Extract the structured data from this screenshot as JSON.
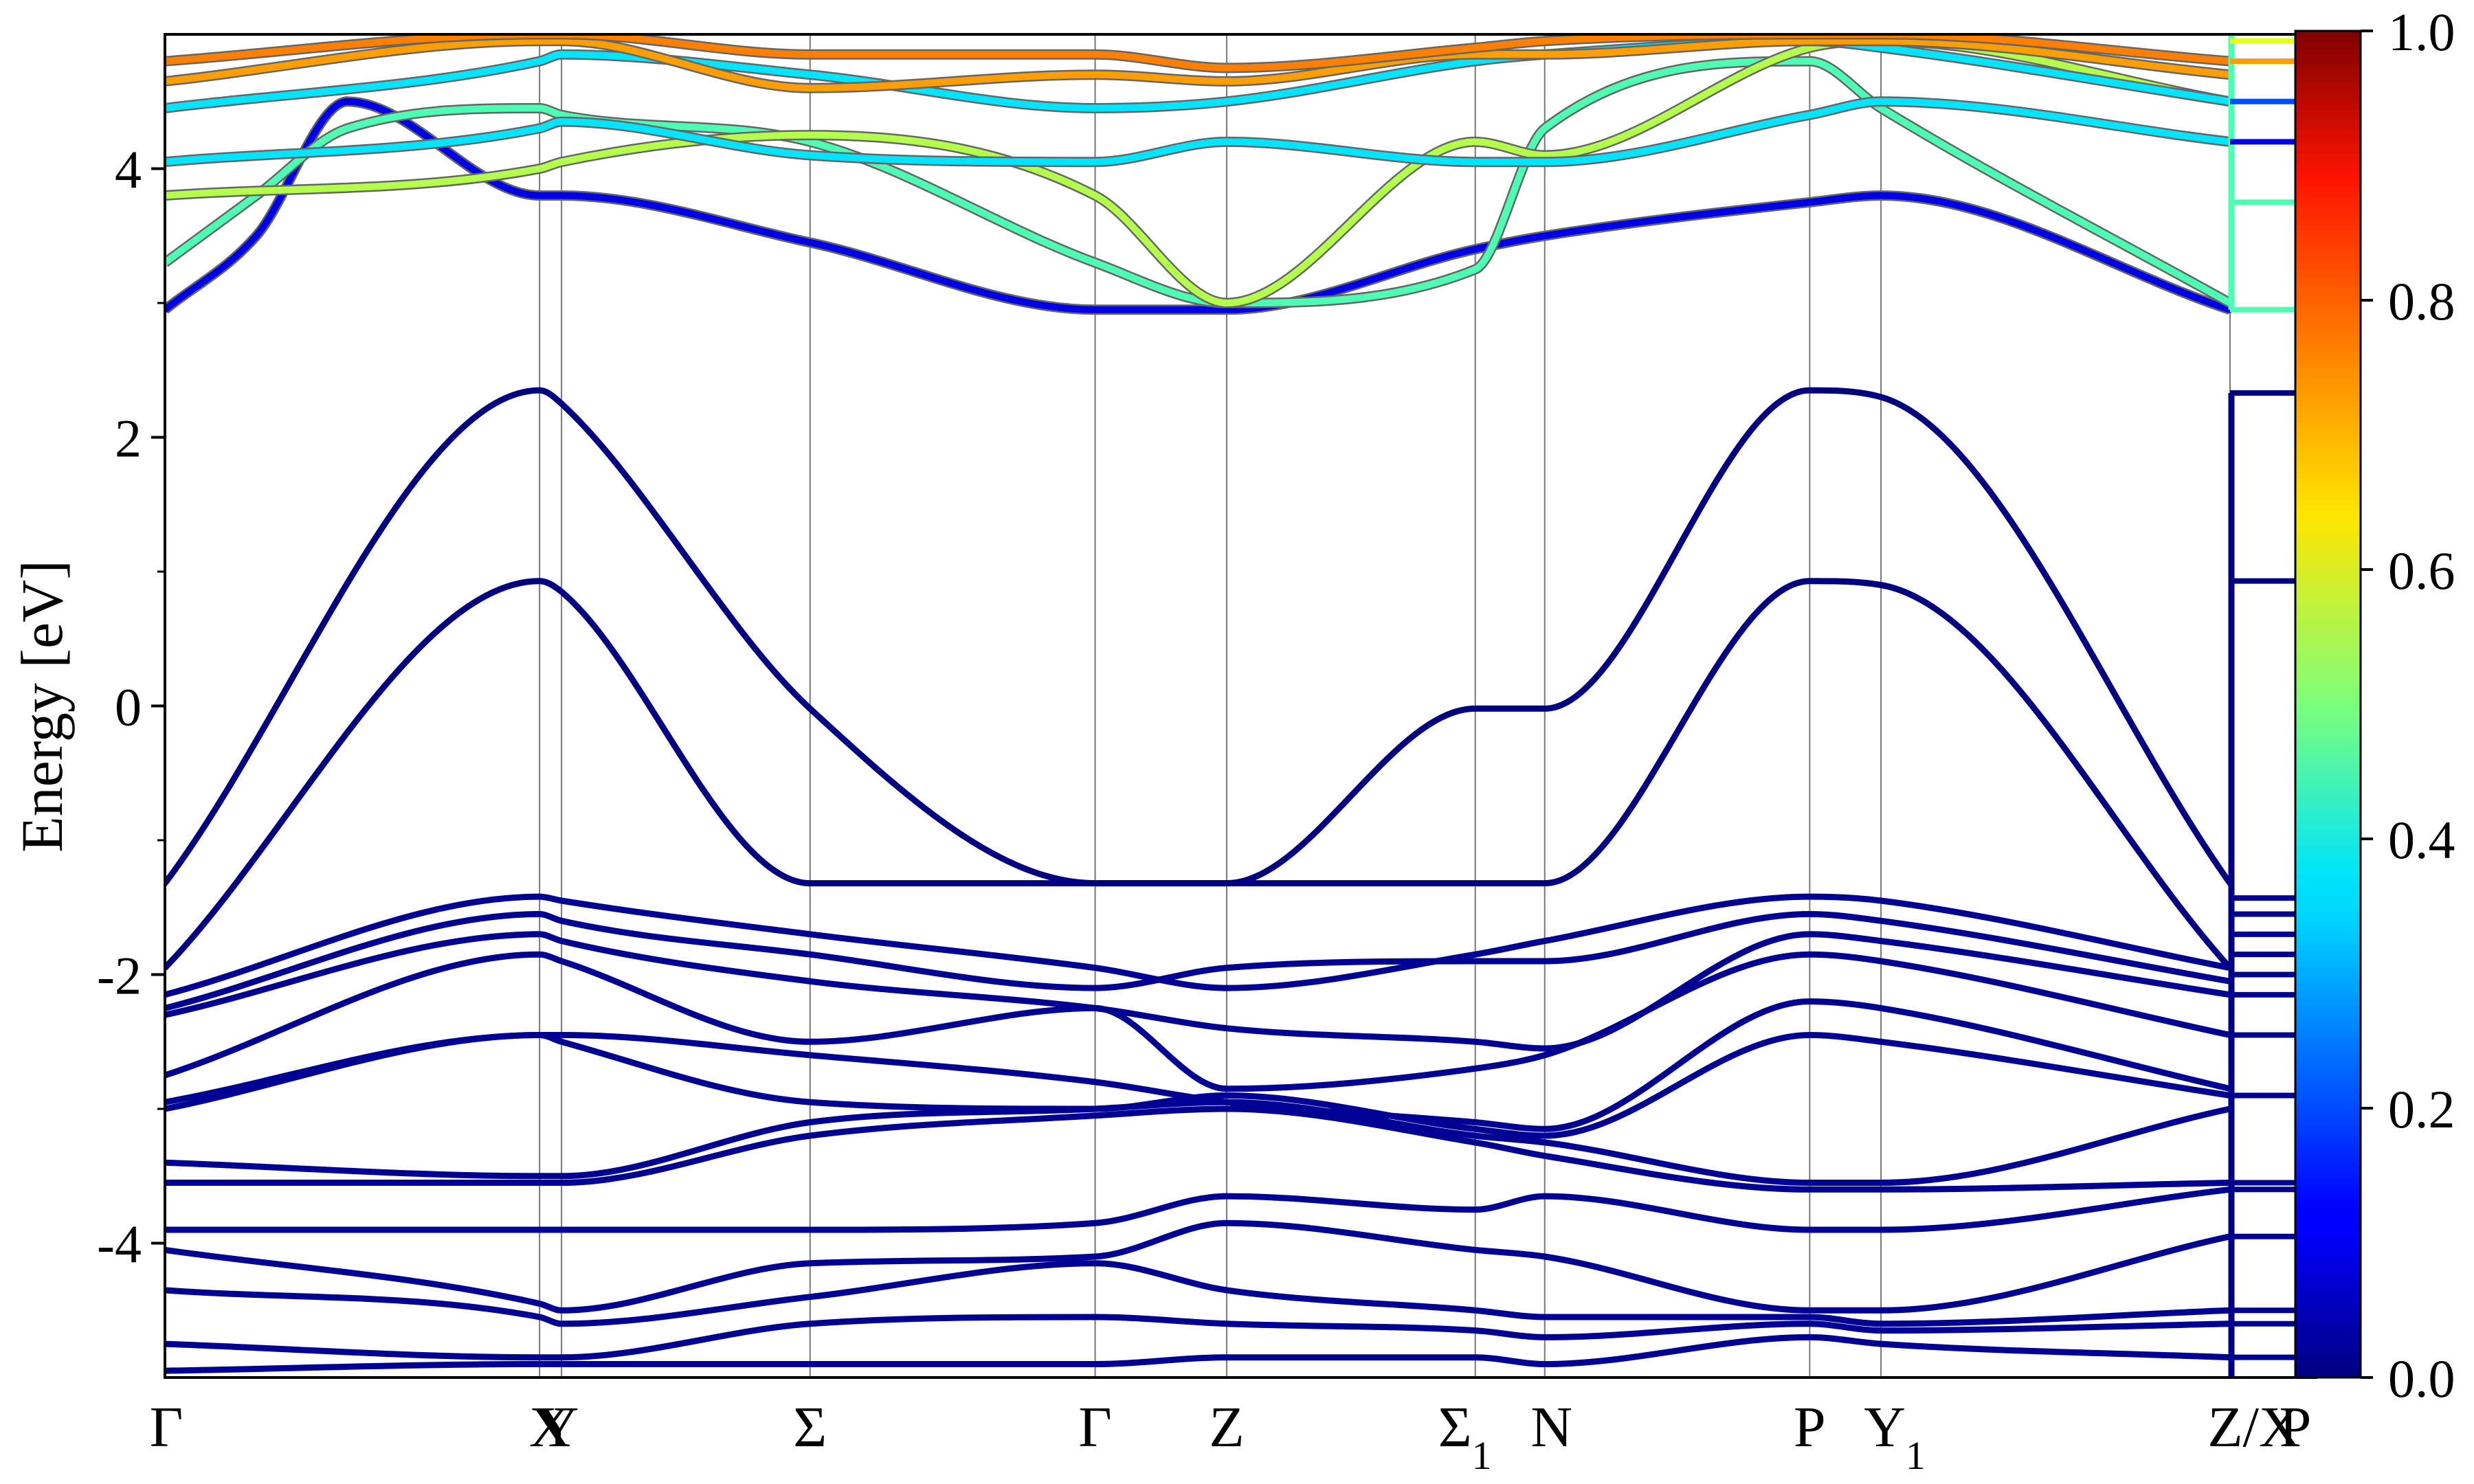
{
  "chart_data": {
    "type": "line",
    "title": "",
    "xlabel": "",
    "ylabel": "Energy [eV]",
    "ylim": [
      -5,
      5
    ],
    "y_ticks": [
      -4,
      -2,
      0,
      2,
      4
    ],
    "y_tick_labels": [
      "-4",
      "-2",
      "0",
      "2",
      "4"
    ],
    "grid": "vertical lines at high-symmetry points",
    "legend": "none",
    "high_symmetry_points": [
      {
        "label": "Γ",
        "sub": "",
        "k": 0.0
      },
      {
        "label": "X",
        "sub": "",
        "k": 2.05
      },
      {
        "label": "Y",
        "sub": "",
        "k": 2.17
      },
      {
        "label": "Σ",
        "sub": "",
        "k": 3.53
      },
      {
        "label": "Γ",
        "sub": "",
        "k": 5.09
      },
      {
        "label": "Z",
        "sub": "",
        "k": 5.81
      },
      {
        "label": "Σ",
        "sub": "1",
        "k": 7.17
      },
      {
        "label": "N",
        "sub": "",
        "k": 7.55
      },
      {
        "label": "P",
        "sub": "",
        "k": 9.0
      },
      {
        "label": "Y",
        "sub": "1",
        "k": 9.39
      },
      {
        "label": "Z/X",
        "sub": "",
        "k": 11.3
      },
      {
        "label": "P",
        "sub": "",
        "k": 11.55
      }
    ],
    "colorbar": {
      "colormap": "jet",
      "range": [
        0.0,
        1.0
      ],
      "tick_labels": [
        "0.0",
        "0.2",
        "0.4",
        "0.6",
        "0.8",
        "1.0"
      ]
    },
    "series": [
      {
        "role": "valence",
        "weight": 0.0,
        "k": [
          0,
          2.05,
          2.17,
          3.53,
          5.09,
          5.81,
          7.17,
          7.55,
          9.0,
          9.39,
          11.3
        ],
        "energy": [
          -1.32,
          2.35,
          2.25,
          -0.02,
          -1.32,
          -1.32,
          -0.02,
          -0.02,
          2.35,
          2.3,
          -1.32
        ]
      },
      {
        "role": "valence",
        "weight": 0.0,
        "k": [
          0,
          2.05,
          2.17,
          3.53,
          5.09,
          5.81,
          7.17,
          7.55,
          9.0,
          9.39,
          11.3
        ],
        "energy": [
          -1.95,
          0.93,
          0.85,
          -1.32,
          -1.32,
          -1.32,
          -1.32,
          -1.32,
          0.93,
          0.9,
          -1.95
        ]
      },
      {
        "role": "valence",
        "weight": 0.02,
        "k": [
          0,
          2.05,
          2.17,
          3.53,
          5.09,
          5.81,
          7.17,
          7.55,
          9.0,
          9.39,
          11.3
        ],
        "energy": [
          -2.15,
          -1.42,
          -1.45,
          -1.7,
          -1.95,
          -2.1,
          -1.85,
          -1.75,
          -1.42,
          -1.45,
          -1.95
        ]
      },
      {
        "role": "valence",
        "weight": 0.02,
        "k": [
          0,
          2.05,
          2.17,
          3.53,
          5.09,
          5.81,
          7.17,
          7.55,
          9.0,
          9.39,
          11.3
        ],
        "energy": [
          -2.25,
          -1.55,
          -1.6,
          -1.85,
          -2.1,
          -1.95,
          -1.9,
          -1.9,
          -1.55,
          -1.6,
          -2.05
        ]
      },
      {
        "role": "valence",
        "weight": 0.02,
        "k": [
          0,
          2.05,
          2.17,
          3.53,
          5.09,
          5.81,
          7.17,
          7.55,
          9.0,
          9.39,
          11.3
        ],
        "energy": [
          -2.3,
          -1.7,
          -1.75,
          -2.05,
          -2.25,
          -2.4,
          -2.5,
          -2.55,
          -1.7,
          -1.75,
          -2.15
        ]
      },
      {
        "role": "valence",
        "weight": 0.02,
        "k": [
          0,
          2.05,
          2.17,
          3.53,
          5.09,
          5.81,
          7.17,
          7.55,
          9.0,
          9.39,
          11.3
        ],
        "energy": [
          -2.75,
          -1.85,
          -1.9,
          -2.5,
          -2.25,
          -2.85,
          -2.7,
          -2.6,
          -1.85,
          -1.9,
          -2.45
        ]
      },
      {
        "role": "valence",
        "weight": 0.02,
        "k": [
          0,
          2.05,
          2.17,
          3.53,
          5.09,
          5.81,
          7.17,
          7.55,
          9.0,
          9.39,
          11.3
        ],
        "energy": [
          -2.95,
          -2.45,
          -2.45,
          -2.6,
          -2.8,
          -2.95,
          -3.1,
          -3.15,
          -2.2,
          -2.25,
          -2.85
        ]
      },
      {
        "role": "valence",
        "weight": 0.02,
        "k": [
          0,
          2.05,
          2.17,
          3.53,
          5.09,
          5.81,
          7.17,
          7.55,
          9.0,
          9.39,
          11.3
        ],
        "energy": [
          -3.0,
          -2.45,
          -2.5,
          -2.95,
          -3.0,
          -2.9,
          -3.15,
          -3.2,
          -2.45,
          -2.5,
          -2.9
        ]
      },
      {
        "role": "valence",
        "weight": 0.02,
        "k": [
          0,
          2.05,
          2.17,
          3.53,
          5.09,
          5.81,
          7.17,
          7.55,
          9.0,
          9.39,
          11.3
        ],
        "energy": [
          -3.4,
          -3.5,
          -3.5,
          -3.1,
          -3.0,
          -2.95,
          -3.2,
          -3.25,
          -3.55,
          -3.55,
          -3.0
        ]
      },
      {
        "role": "valence",
        "weight": 0.02,
        "k": [
          0,
          2.05,
          2.17,
          3.53,
          5.09,
          5.81,
          7.17,
          7.55,
          9.0,
          9.39,
          11.3
        ],
        "energy": [
          -3.55,
          -3.55,
          -3.55,
          -3.2,
          -3.05,
          -3.0,
          -3.25,
          -3.35,
          -3.6,
          -3.6,
          -3.55
        ]
      },
      {
        "role": "valence",
        "weight": 0.02,
        "k": [
          0,
          2.05,
          2.17,
          3.53,
          5.09,
          5.81,
          7.17,
          7.55,
          9.0,
          9.39,
          11.3
        ],
        "energy": [
          -3.9,
          -3.9,
          -3.9,
          -3.9,
          -3.85,
          -3.65,
          -3.75,
          -3.65,
          -3.9,
          -3.9,
          -3.6
        ]
      },
      {
        "role": "valence",
        "weight": 0.02,
        "k": [
          0,
          2.05,
          2.17,
          3.53,
          5.09,
          5.81,
          7.17,
          7.55,
          9.0,
          9.39,
          11.3
        ],
        "energy": [
          -4.05,
          -4.45,
          -4.5,
          -4.15,
          -4.1,
          -3.85,
          -4.05,
          -4.1,
          -4.5,
          -4.5,
          -3.95
        ]
      },
      {
        "role": "valence",
        "weight": 0.02,
        "k": [
          0,
          2.05,
          2.17,
          3.53,
          5.09,
          5.81,
          7.17,
          7.55,
          9.0,
          9.39,
          11.3
        ],
        "energy": [
          -4.35,
          -4.55,
          -4.6,
          -4.4,
          -4.15,
          -4.35,
          -4.5,
          -4.55,
          -4.55,
          -4.6,
          -4.5
        ]
      },
      {
        "role": "valence",
        "weight": 0.02,
        "k": [
          0,
          2.05,
          2.17,
          3.53,
          5.09,
          5.81,
          7.17,
          7.55,
          9.0,
          9.39,
          11.3
        ],
        "energy": [
          -4.75,
          -4.85,
          -4.85,
          -4.6,
          -4.55,
          -4.6,
          -4.65,
          -4.7,
          -4.6,
          -4.65,
          -4.6
        ]
      },
      {
        "role": "valence",
        "weight": 0.02,
        "k": [
          0,
          2.05,
          2.17,
          3.53,
          5.09,
          5.81,
          7.17,
          7.55,
          9.0,
          9.39,
          11.3
        ],
        "energy": [
          -4.95,
          -4.9,
          -4.9,
          -4.9,
          -4.9,
          -4.85,
          -4.85,
          -4.9,
          -4.7,
          -4.75,
          -4.85
        ]
      },
      {
        "role": "conduction",
        "weight": 0.1,
        "k": [
          0,
          0.5,
          1.0,
          2.05,
          2.17,
          3.53,
          5.09,
          5.81,
          7.17,
          7.55,
          9.0,
          9.39,
          11.3
        ],
        "energy": [
          2.95,
          3.5,
          4.5,
          3.8,
          3.8,
          3.45,
          2.95,
          2.95,
          3.4,
          3.5,
          3.75,
          3.8,
          2.95
        ]
      },
      {
        "role": "conduction",
        "weight": 0.45,
        "k": [
          0,
          0.5,
          1.0,
          2.05,
          2.17,
          3.53,
          5.09,
          5.81,
          7.17,
          7.55,
          9.0,
          9.39,
          11.3
        ],
        "energy": [
          3.3,
          3.8,
          4.3,
          4.45,
          4.4,
          4.2,
          3.3,
          3.0,
          3.25,
          4.3,
          4.8,
          4.45,
          3.0
        ]
      },
      {
        "role": "conduction",
        "weight": 0.55,
        "k": [
          0,
          2.05,
          2.17,
          3.53,
          5.09,
          5.81,
          7.17,
          7.55,
          9.0,
          9.39,
          11.3
        ],
        "energy": [
          3.8,
          4.0,
          4.05,
          4.25,
          3.8,
          3.0,
          4.2,
          4.1,
          4.9,
          4.95,
          4.5
        ]
      },
      {
        "role": "conduction",
        "weight": 0.35,
        "k": [
          0,
          2.05,
          2.17,
          3.53,
          5.09,
          5.81,
          7.17,
          7.55,
          9.0,
          9.39,
          11.3
        ],
        "energy": [
          4.05,
          4.3,
          4.35,
          4.1,
          4.05,
          4.2,
          4.05,
          4.05,
          4.4,
          4.5,
          4.2
        ]
      },
      {
        "role": "conduction",
        "weight": 0.35,
        "k": [
          0,
          2.05,
          2.17,
          3.53,
          5.09,
          5.81,
          7.17,
          7.55,
          9.0,
          9.39,
          11.3
        ],
        "energy": [
          4.45,
          4.8,
          4.85,
          4.7,
          4.45,
          4.5,
          4.8,
          4.85,
          4.95,
          4.9,
          4.5
        ]
      },
      {
        "role": "conduction",
        "weight": 0.72,
        "k": [
          0,
          2.05,
          2.17,
          3.53,
          5.09,
          5.81,
          7.17,
          7.55,
          9.0,
          9.39,
          11.3
        ],
        "energy": [
          4.65,
          4.95,
          4.95,
          4.6,
          4.7,
          4.65,
          4.85,
          4.85,
          4.95,
          4.95,
          4.7
        ]
      },
      {
        "role": "conduction",
        "weight": 0.75,
        "k": [
          0,
          2.05,
          2.17,
          3.53,
          5.09,
          5.81,
          7.17,
          7.55,
          9.0,
          9.39,
          11.3
        ],
        "energy": [
          4.8,
          5.0,
          5.0,
          4.85,
          4.85,
          4.75,
          4.9,
          4.95,
          5.0,
          5.0,
          4.8
        ]
      }
    ],
    "dos_panel_levels": [
      {
        "energy": 2.33,
        "weight": 0.0
      },
      {
        "energy": 0.93,
        "weight": 0.0
      },
      {
        "energy": -1.43,
        "weight": 0.02
      },
      {
        "energy": -1.55,
        "weight": 0.02
      },
      {
        "energy": -1.7,
        "weight": 0.02
      },
      {
        "energy": -1.85,
        "weight": 0.02
      },
      {
        "energy": -2.0,
        "weight": 0.02
      },
      {
        "energy": -2.15,
        "weight": 0.02
      },
      {
        "energy": -2.45,
        "weight": 0.02
      },
      {
        "energy": -2.9,
        "weight": 0.02
      },
      {
        "energy": -3.55,
        "weight": 0.02
      },
      {
        "energy": -3.6,
        "weight": 0.02
      },
      {
        "energy": -3.95,
        "weight": 0.02
      },
      {
        "energy": -4.5,
        "weight": 0.02
      },
      {
        "energy": -4.6,
        "weight": 0.02
      },
      {
        "energy": -4.85,
        "weight": 0.02
      },
      {
        "energy": 2.95,
        "weight": 0.45
      },
      {
        "energy": 3.75,
        "weight": 0.45
      },
      {
        "energy": 4.2,
        "weight": 0.1
      },
      {
        "energy": 4.5,
        "weight": 0.2
      },
      {
        "energy": 4.8,
        "weight": 0.72
      },
      {
        "energy": 4.95,
        "weight": 0.6
      }
    ]
  }
}
